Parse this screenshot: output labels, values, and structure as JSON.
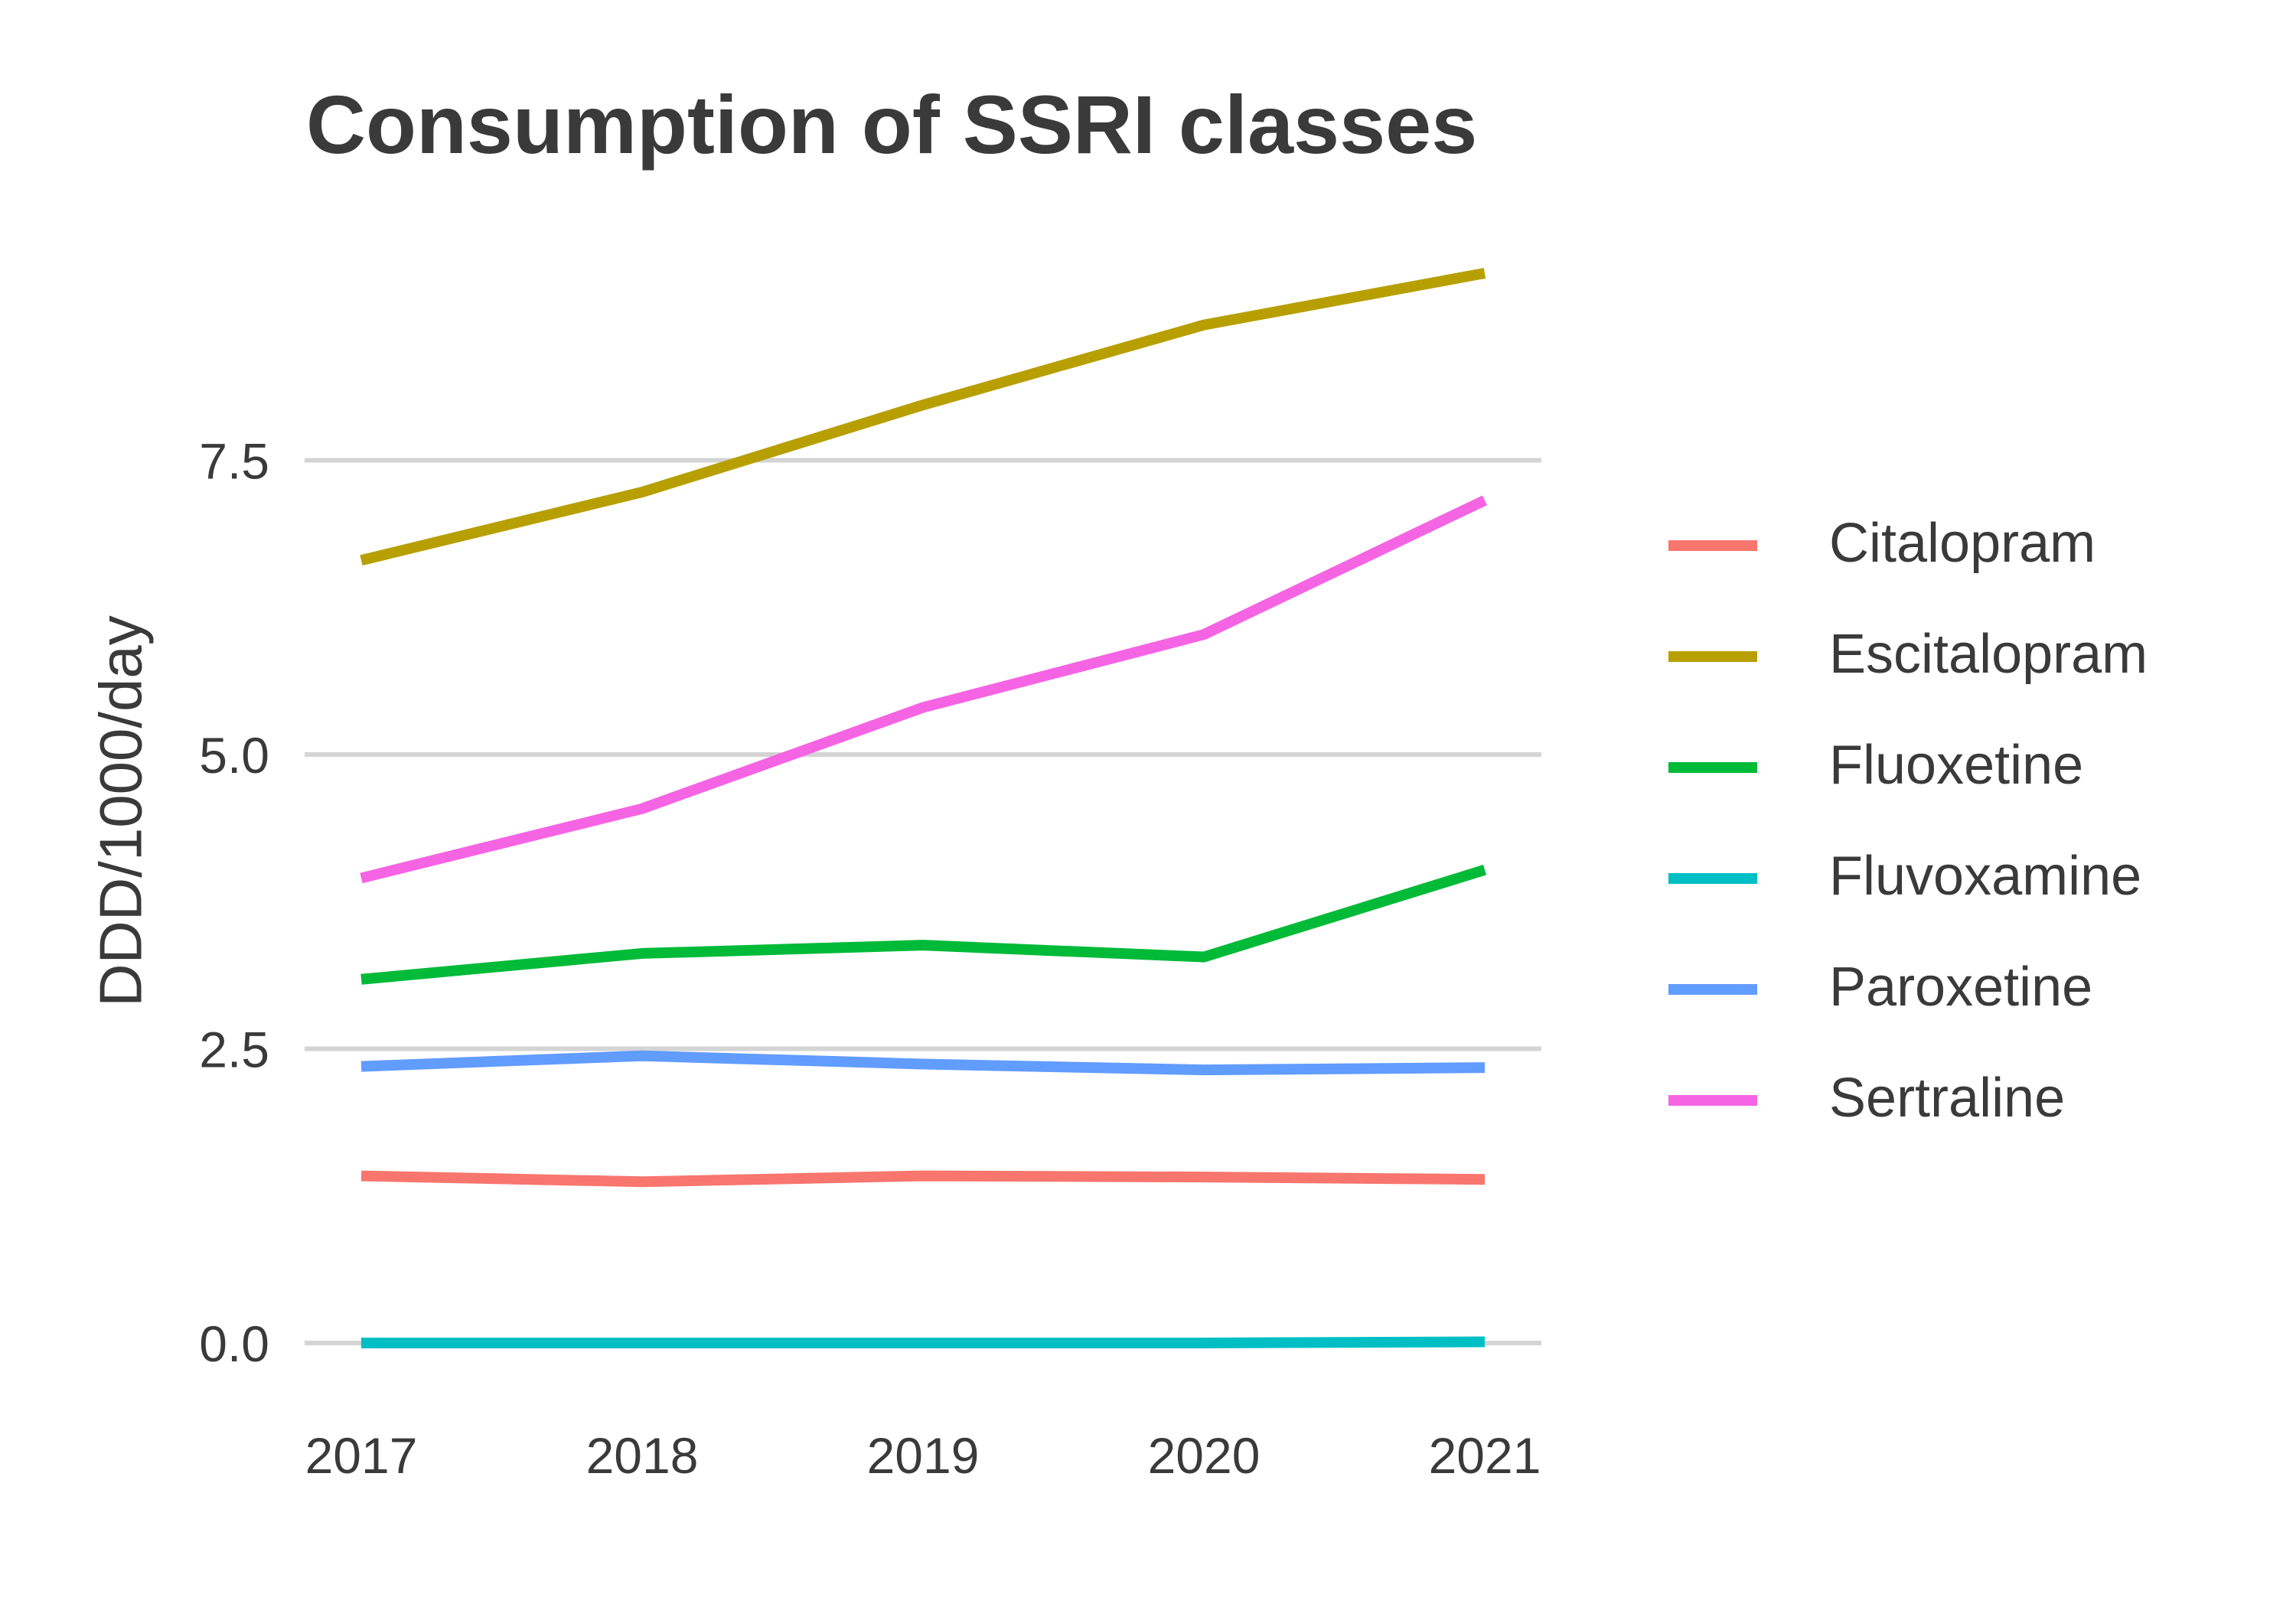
{
  "chart_data": {
    "type": "line",
    "title": "Consumption of SSRI classes",
    "xlabel": "",
    "ylabel": "DDD/1000/day",
    "x": [
      2017,
      2018,
      2019,
      2020,
      2021
    ],
    "x_tick_labels": [
      "2017",
      "2018",
      "2019",
      "2020",
      "2021"
    ],
    "y_ticks": [
      0.0,
      2.5,
      5.0,
      7.5
    ],
    "y_tick_labels": [
      "0.0",
      "2.5",
      "5.0",
      "7.5"
    ],
    "xlim": [
      2016.8,
      2021.2
    ],
    "ylim": [
      -0.3,
      9.6
    ],
    "grid": "horizontal major",
    "legend_position": "right",
    "series": [
      {
        "name": "Citalopram",
        "color": "#F8766D",
        "values": [
          1.42,
          1.37,
          1.42,
          1.41,
          1.39
        ]
      },
      {
        "name": "Escitalopram",
        "color": "#B79F00",
        "values": [
          6.65,
          7.23,
          7.97,
          8.65,
          9.09
        ]
      },
      {
        "name": "Fluoxetine",
        "color": "#00BA38",
        "values": [
          3.09,
          3.31,
          3.38,
          3.28,
          4.02
        ]
      },
      {
        "name": "Fluvoxamine",
        "color": "#00BFC4",
        "values": [
          0.0,
          0.0,
          0.0,
          0.0,
          0.01
        ]
      },
      {
        "name": "Paroxetine",
        "color": "#619CFF",
        "values": [
          2.35,
          2.44,
          2.37,
          2.32,
          2.34
        ]
      },
      {
        "name": "Sertraline",
        "color": "#F564E3",
        "values": [
          3.95,
          4.54,
          5.4,
          6.02,
          7.16
        ]
      }
    ]
  }
}
